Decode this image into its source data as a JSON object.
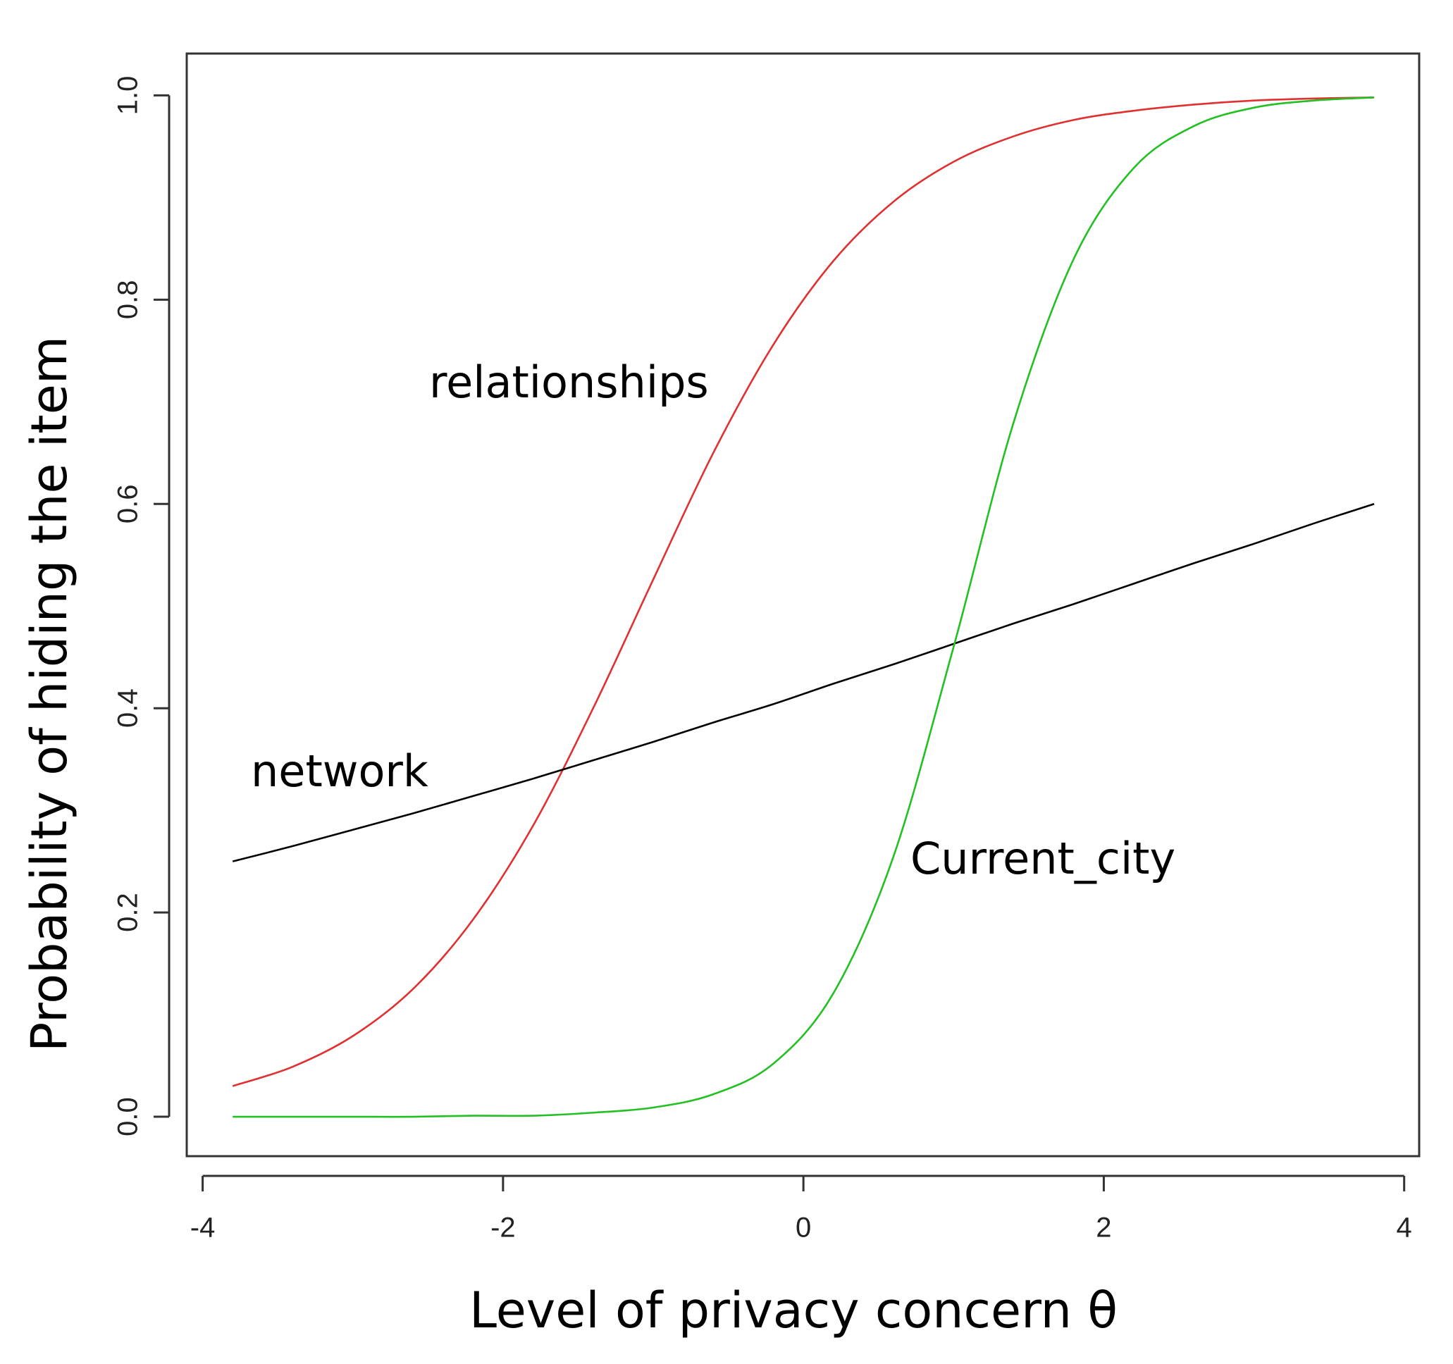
{
  "chart_data": {
    "type": "line",
    "x_label": "Level of privacy concern θ",
    "y_label": "Probability of hiding the item",
    "x": [
      -3.8,
      -3.4,
      -3.0,
      -2.6,
      -2.2,
      -1.8,
      -1.4,
      -1.0,
      -0.6,
      -0.2,
      0.2,
      0.6,
      1.0,
      1.4,
      1.8,
      2.2,
      2.6,
      3.0,
      3.4,
      3.8
    ],
    "series": [
      {
        "name": "relationships",
        "color": "#e03030",
        "values": [
          0.03,
          0.049,
          0.079,
          0.125,
          0.193,
          0.285,
          0.4,
          0.526,
          0.65,
          0.756,
          0.838,
          0.896,
          0.935,
          0.96,
          0.976,
          0.985,
          0.991,
          0.995,
          0.997,
          0.998
        ]
      },
      {
        "name": "network",
        "color": "#000000",
        "values": [
          0.25,
          0.265,
          0.281,
          0.297,
          0.314,
          0.331,
          0.349,
          0.367,
          0.386,
          0.404,
          0.424,
          0.443,
          0.463,
          0.483,
          0.502,
          0.522,
          0.542,
          0.561,
          0.581,
          0.6
        ]
      },
      {
        "name": "Current_city",
        "color": "#22c022",
        "values": [
          0.0,
          0.0,
          0.0,
          0.0,
          0.001,
          0.001,
          0.004,
          0.009,
          0.022,
          0.052,
          0.121,
          0.255,
          0.46,
          0.68,
          0.84,
          0.929,
          0.97,
          0.988,
          0.995,
          0.998
        ]
      }
    ],
    "xlim": [
      -4.106,
      4.1
    ],
    "ylim": [
      -0.0386,
      1.041
    ],
    "xticks": [
      -4,
      -2,
      0,
      2,
      4
    ],
    "yticks": [
      {
        "value": 0,
        "label": "0.0"
      },
      0.2,
      0.4,
      0.6,
      0.8,
      {
        "value": 1,
        "label": "1.0"
      }
    ],
    "grid": false
  }
}
